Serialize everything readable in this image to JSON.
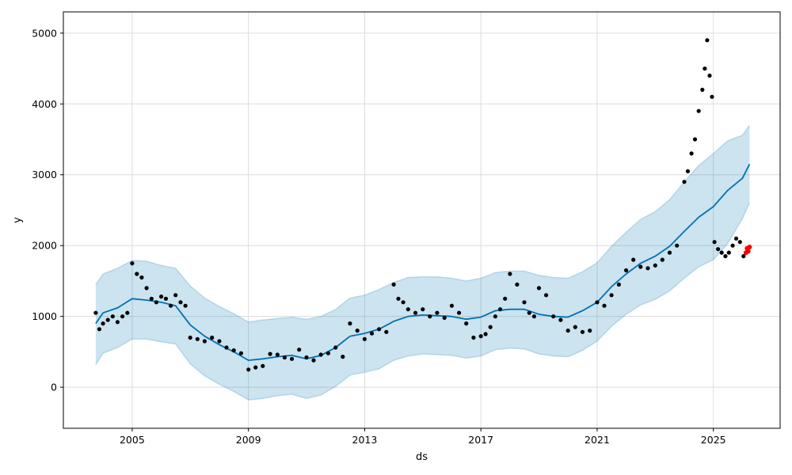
{
  "chart_data": {
    "type": "scatter",
    "title": "",
    "xlabel": "ds",
    "ylabel": "y",
    "xlim": [
      "2002-08-20",
      "2027-04-20"
    ],
    "ylim": [
      -580,
      5300
    ],
    "x_ticks": [
      "2005",
      "2009",
      "2013",
      "2017",
      "2021",
      "2025"
    ],
    "y_ticks": [
      0,
      1000,
      2000,
      3000,
      4000,
      5000
    ],
    "grid": true,
    "legend": "none",
    "colors": {
      "observed": "#000000",
      "forecast_line": "#0072b2",
      "uncertainty_fill": "#0072b2",
      "holdout": "#ff0000"
    },
    "series": [
      {
        "role": "forecast",
        "x": [
          "2003-10-01",
          "2004-01-01",
          "2004-07-01",
          "2005-01-01",
          "2005-07-01",
          "2006-01-01",
          "2006-07-01",
          "2007-01-01",
          "2007-07-01",
          "2008-01-01",
          "2008-07-01",
          "2009-01-01",
          "2009-07-01",
          "2010-01-01",
          "2010-07-01",
          "2011-01-01",
          "2011-07-01",
          "2012-01-01",
          "2012-07-01",
          "2013-01-01",
          "2013-07-01",
          "2014-01-01",
          "2014-07-01",
          "2015-01-01",
          "2015-07-01",
          "2016-01-01",
          "2016-07-01",
          "2017-01-01",
          "2017-07-01",
          "2018-01-01",
          "2018-07-01",
          "2019-01-01",
          "2019-07-01",
          "2020-01-01",
          "2020-07-01",
          "2021-01-01",
          "2021-07-01",
          "2022-01-01",
          "2022-07-01",
          "2023-01-01",
          "2023-07-01",
          "2024-01-01",
          "2024-07-01",
          "2025-01-01",
          "2025-07-01",
          "2026-01-01",
          "2026-04-01"
        ],
        "y": [
          900,
          1050,
          1120,
          1250,
          1230,
          1200,
          1150,
          880,
          720,
          600,
          500,
          380,
          400,
          430,
          450,
          400,
          450,
          560,
          720,
          760,
          820,
          930,
          1000,
          1020,
          1010,
          1000,
          960,
          990,
          1080,
          1100,
          1100,
          1030,
          1000,
          990,
          1080,
          1200,
          1420,
          1600,
          1750,
          1850,
          1990,
          2200,
          2400,
          2550,
          2780,
          2950,
          3150
        ]
      },
      {
        "role": "uncertainty",
        "x": [
          "2003-10-01",
          "2004-01-01",
          "2004-07-01",
          "2005-01-01",
          "2005-07-01",
          "2006-01-01",
          "2006-07-01",
          "2007-01-01",
          "2007-07-01",
          "2008-01-01",
          "2008-07-01",
          "2009-01-01",
          "2009-07-01",
          "2010-01-01",
          "2010-07-01",
          "2011-01-01",
          "2011-07-01",
          "2012-01-01",
          "2012-07-01",
          "2013-01-01",
          "2013-07-01",
          "2014-01-01",
          "2014-07-01",
          "2015-01-01",
          "2015-07-01",
          "2016-01-01",
          "2016-07-01",
          "2017-01-01",
          "2017-07-01",
          "2018-01-01",
          "2018-07-01",
          "2019-01-01",
          "2019-07-01",
          "2020-01-01",
          "2020-07-01",
          "2021-01-01",
          "2021-07-01",
          "2022-01-01",
          "2022-07-01",
          "2023-01-01",
          "2023-07-01",
          "2024-01-01",
          "2024-07-01",
          "2025-01-01",
          "2025-07-01",
          "2026-01-01",
          "2026-04-01"
        ],
        "upper": [
          1450,
          1600,
          1680,
          1790,
          1780,
          1720,
          1680,
          1430,
          1260,
          1140,
          1040,
          920,
          950,
          970,
          990,
          960,
          1000,
          1100,
          1260,
          1300,
          1380,
          1480,
          1550,
          1560,
          1560,
          1540,
          1500,
          1540,
          1620,
          1640,
          1640,
          1580,
          1550,
          1540,
          1630,
          1760,
          1990,
          2190,
          2370,
          2480,
          2650,
          2900,
          3130,
          3300,
          3480,
          3560,
          3700
        ],
        "lower": [
          320,
          480,
          560,
          680,
          680,
          640,
          610,
          330,
          160,
          40,
          -60,
          -180,
          -160,
          -120,
          -100,
          -160,
          -110,
          10,
          170,
          210,
          260,
          380,
          440,
          470,
          460,
          450,
          410,
          440,
          530,
          550,
          540,
          470,
          440,
          430,
          520,
          650,
          860,
          1030,
          1160,
          1240,
          1360,
          1540,
          1700,
          1800,
          2030,
          2380,
          2600
        ]
      },
      {
        "role": "observed",
        "x": [
          "2003-10-01",
          "2003-11-15",
          "2004-01-01",
          "2004-03-01",
          "2004-05-01",
          "2004-07-01",
          "2004-09-01",
          "2004-11-01",
          "2005-01-01",
          "2005-03-01",
          "2005-05-01",
          "2005-07-01",
          "2005-09-01",
          "2005-11-01",
          "2006-01-01",
          "2006-03-01",
          "2006-05-01",
          "2006-07-01",
          "2006-09-01",
          "2006-11-01",
          "2007-01-01",
          "2007-04-01",
          "2007-07-01",
          "2007-10-01",
          "2008-01-01",
          "2008-04-01",
          "2008-07-01",
          "2008-10-01",
          "2009-01-01",
          "2009-04-01",
          "2009-07-01",
          "2009-10-01",
          "2010-01-01",
          "2010-04-01",
          "2010-07-01",
          "2010-10-01",
          "2011-01-01",
          "2011-04-01",
          "2011-07-01",
          "2011-10-01",
          "2012-01-01",
          "2012-04-01",
          "2012-07-01",
          "2012-10-01",
          "2013-01-01",
          "2013-04-01",
          "2013-07-01",
          "2013-10-01",
          "2014-01-01",
          "2014-03-01",
          "2014-05-01",
          "2014-07-01",
          "2014-10-01",
          "2015-01-01",
          "2015-04-01",
          "2015-07-01",
          "2015-10-01",
          "2016-01-01",
          "2016-04-01",
          "2016-07-01",
          "2016-10-01",
          "2017-01-01",
          "2017-03-01",
          "2017-05-01",
          "2017-07-01",
          "2017-09-01",
          "2017-11-01",
          "2018-01-01",
          "2018-04-01",
          "2018-07-01",
          "2018-09-01",
          "2018-11-01",
          "2019-01-01",
          "2019-04-01",
          "2019-07-01",
          "2019-10-01",
          "2020-01-01",
          "2020-04-01",
          "2020-07-01",
          "2020-10-01",
          "2021-01-01",
          "2021-04-01",
          "2021-07-01",
          "2021-10-01",
          "2022-01-01",
          "2022-04-01",
          "2022-07-01",
          "2022-10-01",
          "2023-01-01",
          "2023-04-01",
          "2023-07-01",
          "2023-10-01",
          "2024-01-01",
          "2024-02-15",
          "2024-04-01",
          "2024-05-15",
          "2024-07-01",
          "2024-08-15",
          "2024-09-15",
          "2024-10-15",
          "2024-11-15",
          "2024-12-15",
          "2025-01-15",
          "2025-03-01",
          "2025-04-15",
          "2025-06-01",
          "2025-07-15",
          "2025-09-01",
          "2025-10-15",
          "2025-12-01",
          "2026-01-15"
        ],
        "y": [
          1050,
          820,
          900,
          950,
          1000,
          920,
          1000,
          1050,
          1750,
          1600,
          1550,
          1400,
          1250,
          1200,
          1280,
          1250,
          1150,
          1300,
          1200,
          1150,
          700,
          680,
          650,
          700,
          650,
          560,
          520,
          480,
          250,
          280,
          300,
          470,
          460,
          420,
          400,
          530,
          420,
          380,
          460,
          480,
          560,
          430,
          900,
          800,
          680,
          760,
          820,
          780,
          1450,
          1250,
          1200,
          1100,
          1050,
          1100,
          1000,
          1050,
          980,
          1150,
          1050,
          900,
          700,
          720,
          750,
          850,
          1000,
          1100,
          1250,
          1600,
          1450,
          1200,
          1050,
          1000,
          1400,
          1300,
          1000,
          950,
          800,
          850,
          780,
          800,
          1200,
          1150,
          1300,
          1450,
          1650,
          1800,
          1700,
          1680,
          1720,
          1800,
          1900,
          2000,
          2900,
          3050,
          3300,
          3500,
          3900,
          4200,
          4500,
          4900,
          4400,
          4100,
          2050,
          1950,
          1900,
          1850,
          1900,
          2000,
          2100,
          2050,
          1850
        ]
      },
      {
        "role": "holdout",
        "x": [
          "2026-02-15",
          "2026-03-01",
          "2026-03-15",
          "2026-04-01"
        ],
        "y": [
          1900,
          1960,
          1920,
          1980
        ]
      }
    ]
  }
}
